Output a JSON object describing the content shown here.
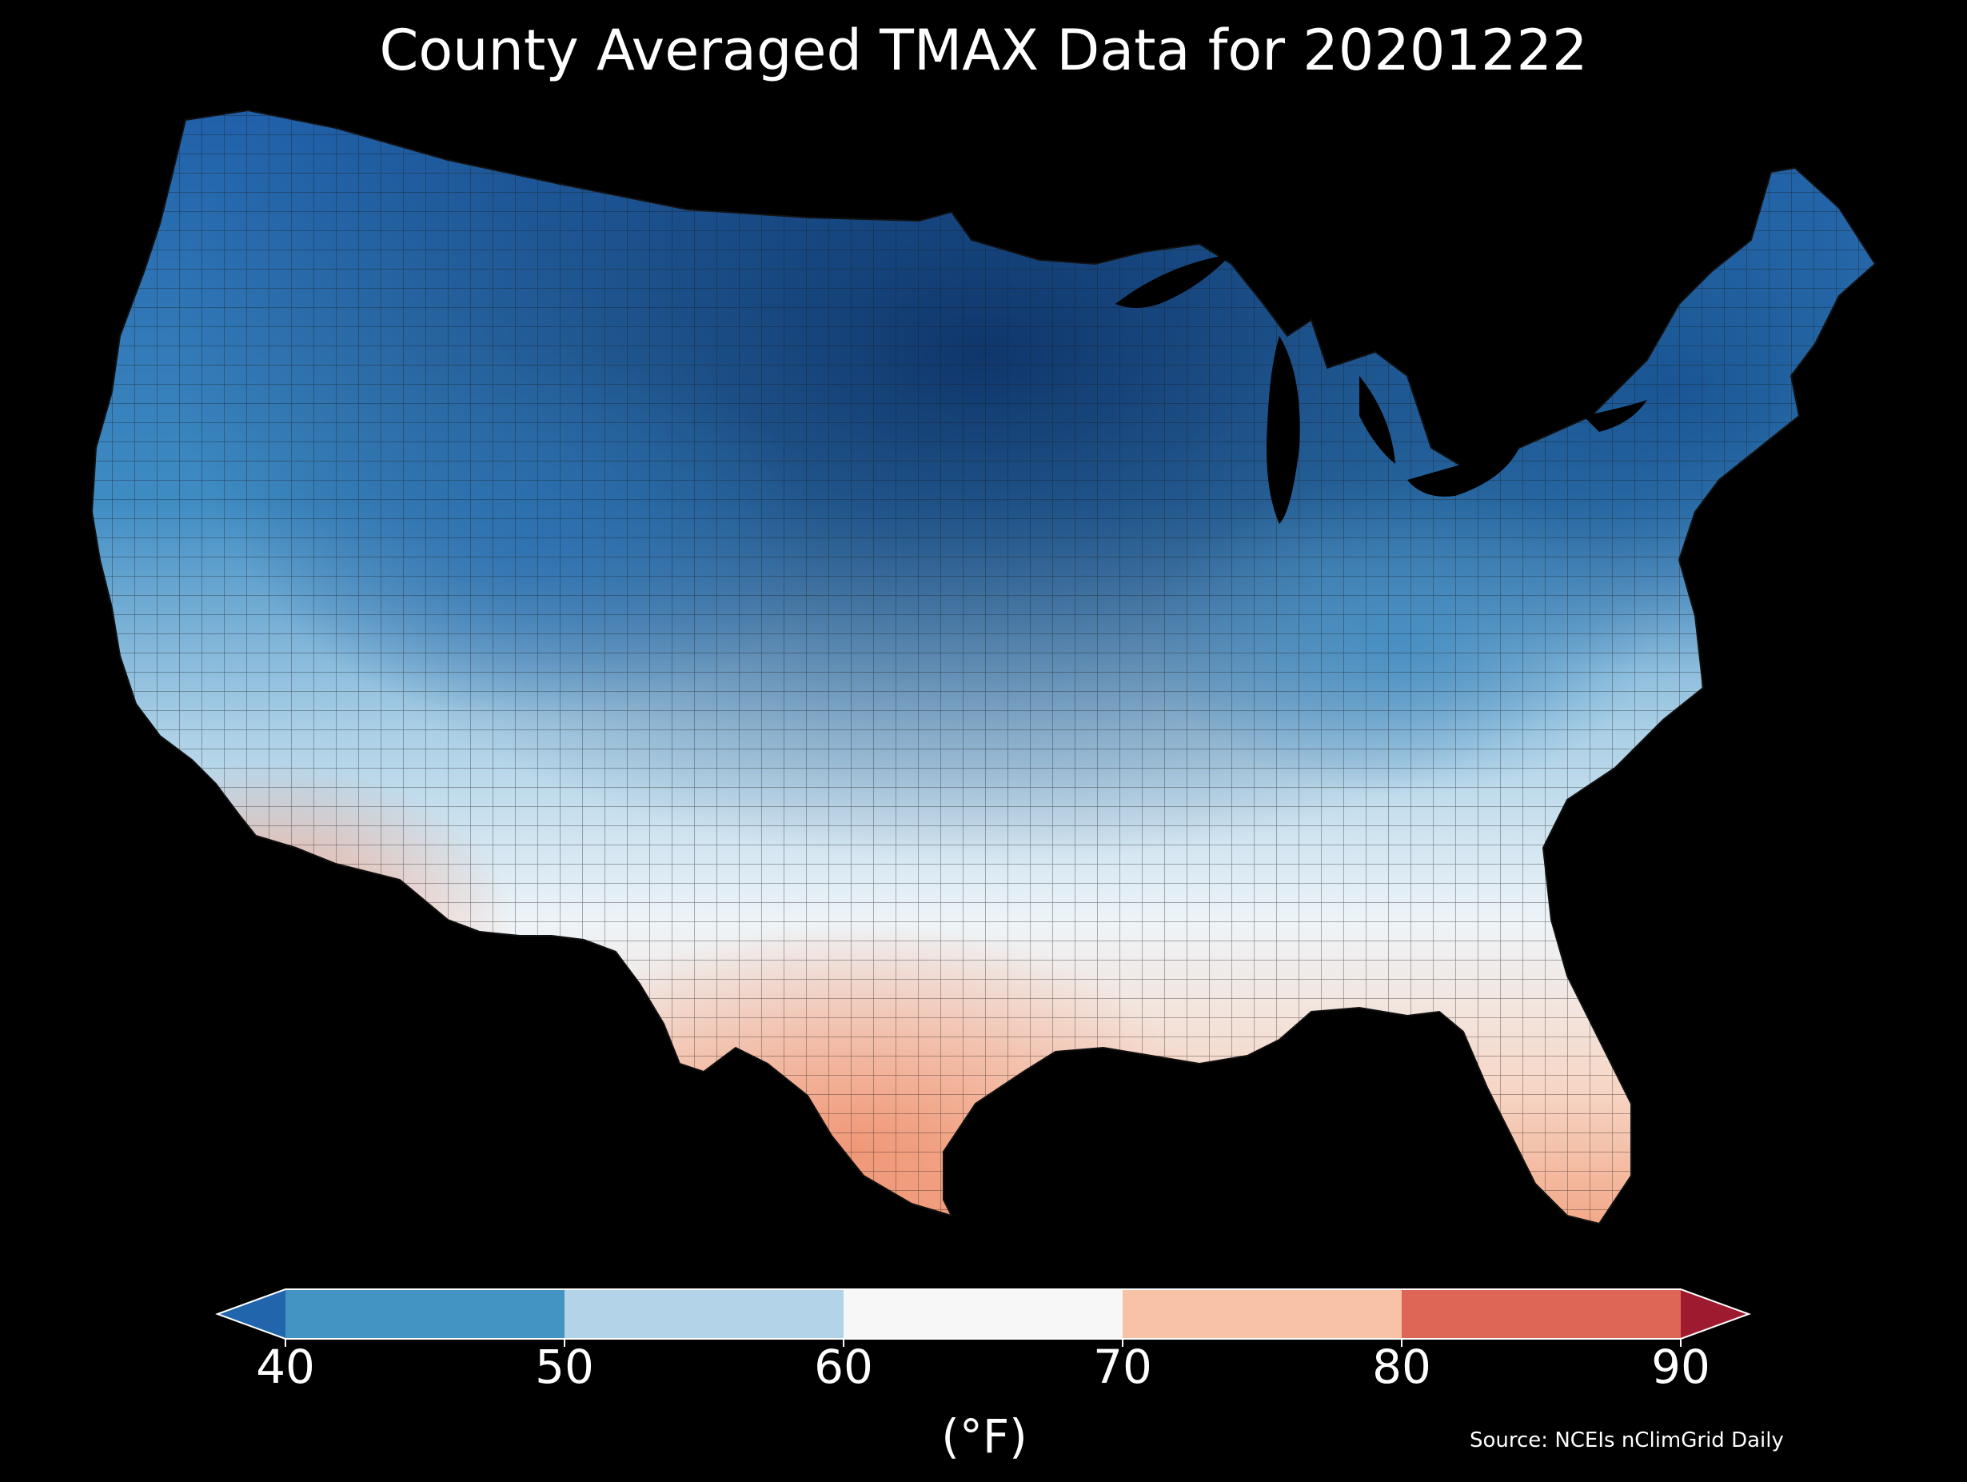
{
  "title": "County Averaged TMAX Data for 20201222",
  "colorbar": {
    "unit_label": "(°F)",
    "ticks": [
      "40",
      "50",
      "60",
      "70",
      "80",
      "90"
    ],
    "bins": [
      {
        "from": null,
        "to": 40,
        "color": "#2166ac"
      },
      {
        "from": 40,
        "to": 50,
        "color": "#4393c3"
      },
      {
        "from": 50,
        "to": 60,
        "color": "#b3d4e8"
      },
      {
        "from": 60,
        "to": 70,
        "color": "#f7f7f7"
      },
      {
        "from": 70,
        "to": 80,
        "color": "#f8c2a6"
      },
      {
        "from": 80,
        "to": 90,
        "color": "#de6656"
      },
      {
        "from": 90,
        "to": null,
        "color": "#9e1a2e"
      }
    ]
  },
  "source": "Source: NCEIs nClimGrid Daily",
  "colors": {
    "background": "#000000",
    "county_border": "#222222",
    "colorbar_edge": "#ffffff"
  }
}
